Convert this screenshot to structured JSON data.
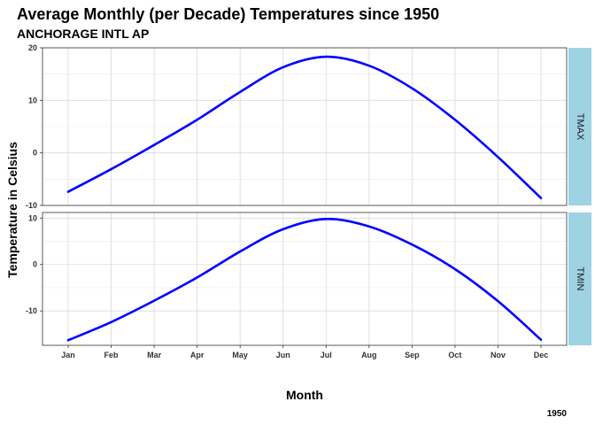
{
  "chart_data": {
    "type": "line",
    "title": "Average Monthly (per Decade) Temperatures since 1950",
    "subtitle": "ANCHORAGE INTL AP",
    "xlabel": "Month",
    "ylabel": "Temperature in Celsius",
    "caption": "1950",
    "line_color": "#0000ff",
    "strip_color": "#9dd3e3",
    "grid": true,
    "categories": [
      "Jan",
      "Feb",
      "Mar",
      "Apr",
      "May",
      "Jun",
      "Jul",
      "Aug",
      "Sep",
      "Oct",
      "Nov",
      "Dec"
    ],
    "panels": [
      {
        "name": "TMAX",
        "yticks": [
          -10,
          0,
          10,
          20
        ],
        "ylim": [
          -10,
          20
        ],
        "values": [
          -7.4,
          -3.1,
          1.5,
          6.3,
          11.6,
          16.3,
          18.3,
          16.6,
          12.3,
          6.3,
          -0.8,
          -8.6
        ]
      },
      {
        "name": "TMIN",
        "yticks": [
          -10,
          0,
          10
        ],
        "ylim": [
          -17.4,
          11.2
        ],
        "values": [
          -16.3,
          -12.4,
          -7.8,
          -2.8,
          2.8,
          7.6,
          9.8,
          8.2,
          4.3,
          -1.0,
          -7.9,
          -16.2
        ]
      }
    ]
  }
}
